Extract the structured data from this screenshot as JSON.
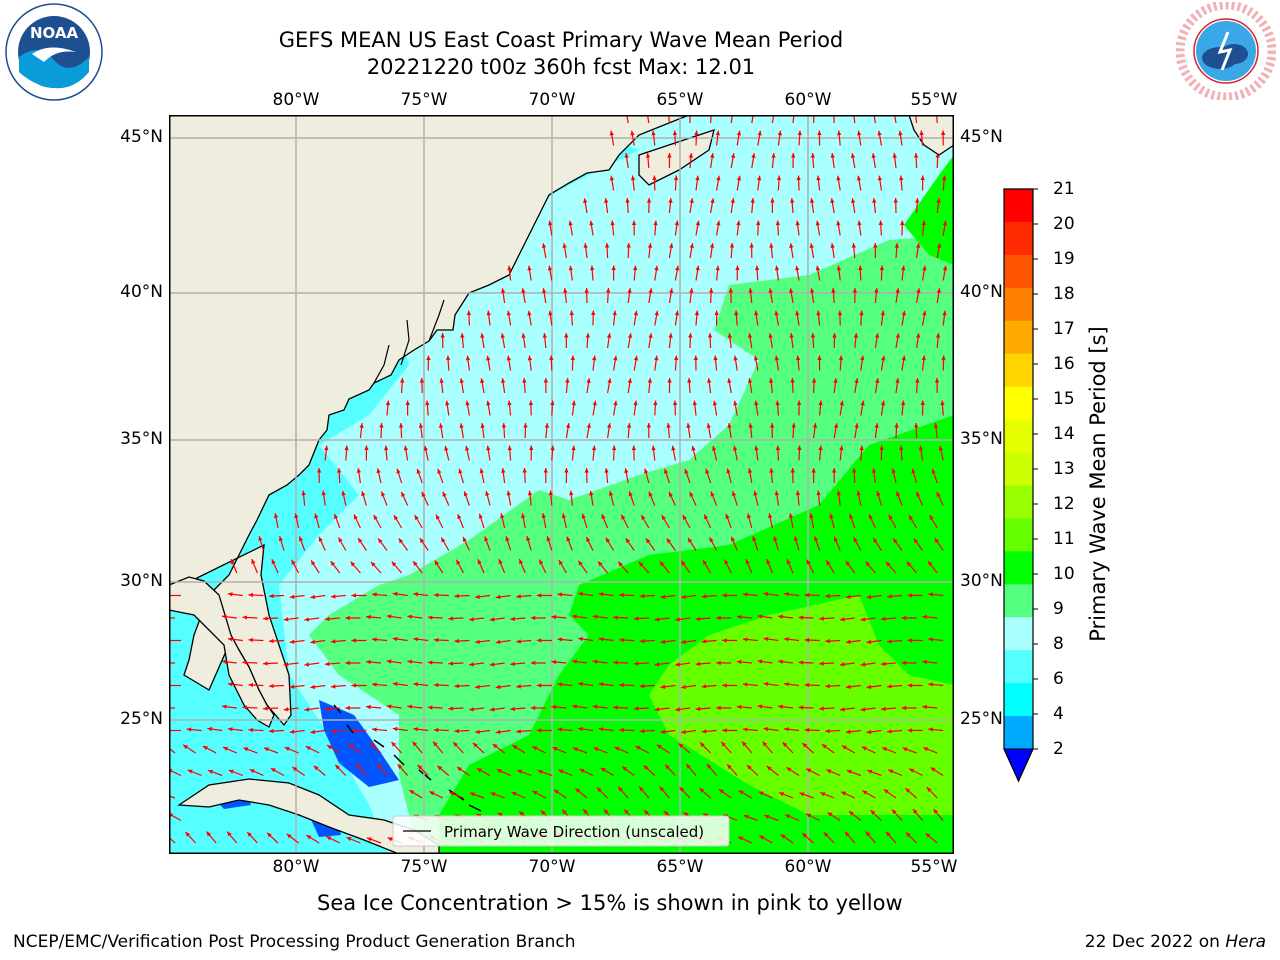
{
  "title": {
    "line1": "GEFS MEAN US East Coast Primary Wave Mean Period",
    "line2": "20221220 t00z 360h fcst   Max: 12.01"
  },
  "map": {
    "lon_labels": [
      "80°W",
      "75°W",
      "70°W",
      "65°W",
      "60°W",
      "55°W"
    ],
    "lat_labels": [
      "45°N",
      "40°N",
      "35°N",
      "30°N",
      "25°N"
    ],
    "legend_label": "Primary Wave Direction (unscaled)",
    "colors": {
      "land": "#efedde",
      "arrow": "#ff0000",
      "grid": "#b0b0b0"
    }
  },
  "colorbar": {
    "label": "Primary Wave Mean Period [s]",
    "ticks": [
      "21",
      "20",
      "19",
      "18",
      "17",
      "16",
      "15",
      "14",
      "13",
      "12",
      "11",
      "10",
      "9",
      "8",
      "6",
      "4",
      "2"
    ],
    "colors": [
      "#ff0000",
      "#ff2a00",
      "#ff5500",
      "#ff8000",
      "#ffaa00",
      "#ffd400",
      "#ffff00",
      "#e6ff00",
      "#ccff00",
      "#99ff00",
      "#66ff00",
      "#00ff00",
      "#55ff7f",
      "#aaffff",
      "#55ffff",
      "#00ffff",
      "#00aaff",
      "#0055ff"
    ],
    "extend_color": "#0000ff"
  },
  "note": "Sea Ice Concentration > 15% is shown in pink to yellow",
  "footer": {
    "left": "NCEP/EMC/Verification Post Processing Product Generation Branch",
    "right_date": "22 Dec 2022 on ",
    "right_host": "Hera"
  }
}
